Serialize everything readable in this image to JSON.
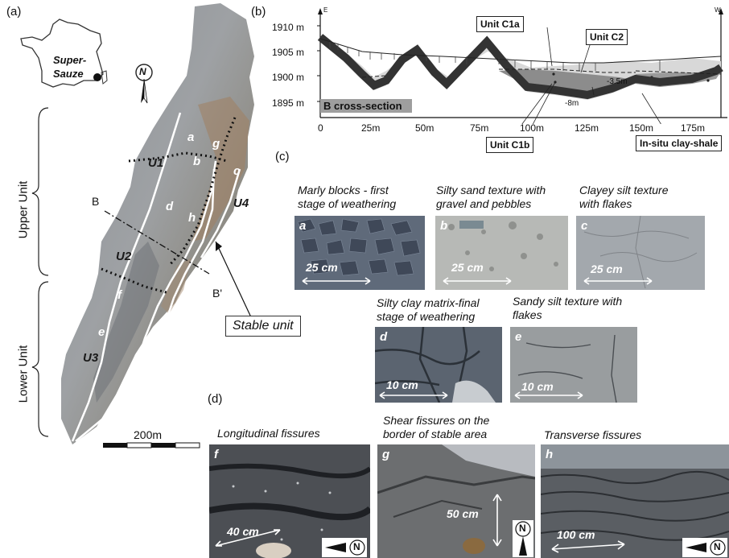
{
  "panels": {
    "a": "(a)",
    "b": "(b)",
    "c": "(c)",
    "d": "(d)"
  },
  "map": {
    "location_label": "Super-\nSauze",
    "location_line1": "Super-",
    "location_line2": "Sauze",
    "north": "N",
    "units": {
      "U1": "U1",
      "U2": "U2",
      "U3": "U3",
      "U4": "U4"
    },
    "letters": {
      "a": "a",
      "b": "b",
      "c": "c",
      "d": "d",
      "e": "e",
      "f": "f",
      "g": "g",
      "h": "h"
    },
    "section_start": "B",
    "section_end": "B'",
    "upper_unit": "Upper Unit",
    "lower_unit": "Lower Unit",
    "stable_unit": "Stable unit",
    "scale_label": "200m"
  },
  "cross_section": {
    "direction_left": "E",
    "direction_right": "W",
    "title": "B cross-section",
    "y_ticks": [
      "1910 m",
      "1905 m",
      "1900 m",
      "1895 m"
    ],
    "x_ticks": [
      "0",
      "25m",
      "50m",
      "75m",
      "100m",
      "125m",
      "150m",
      "175m"
    ],
    "units": {
      "c1a": "Unit C1a",
      "c2": "Unit C2",
      "c1b": "Unit C1b",
      "shale": "In-situ clay-shale"
    },
    "depths": {
      "d1": "-3.5m",
      "d2": "-8m"
    }
  },
  "textures": [
    {
      "letter": "a",
      "caption1": "Marly blocks - first",
      "caption2": "stage of weathering",
      "scale": "25 cm"
    },
    {
      "letter": "b",
      "caption1": "Silty sand texture with",
      "caption2": "gravel and pebbles",
      "scale": "25 cm"
    },
    {
      "letter": "c",
      "caption1": "Clayey silt texture",
      "caption2": "with flakes",
      "scale": "25 cm"
    },
    {
      "letter": "d",
      "caption1": "Silty clay matrix-final",
      "caption2": "stage of weathering",
      "scale": "10 cm"
    },
    {
      "letter": "e",
      "caption1": "Sandy silt texture with",
      "caption2": "flakes",
      "scale": "10 cm"
    }
  ],
  "fissures": [
    {
      "letter": "f",
      "caption1": "Longitudinal fissures",
      "caption2": "",
      "scale": "40 cm",
      "north": "N"
    },
    {
      "letter": "g",
      "caption1": "Shear fissures on the",
      "caption2": "border of stable area",
      "scale": "50 cm",
      "north": "N"
    },
    {
      "letter": "h",
      "caption1": "Transverse fissures",
      "caption2": "",
      "scale": "100 cm",
      "north": "N"
    }
  ]
}
